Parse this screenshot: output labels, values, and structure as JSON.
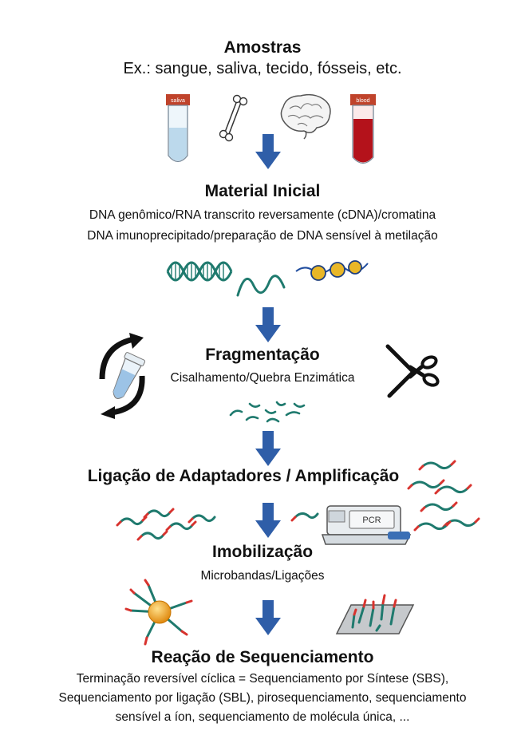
{
  "stages": {
    "samples": {
      "title": "Amostras",
      "subtitle": "Ex.: sangue, saliva, tecido, fósseis, etc.",
      "tube1_label": "saliva",
      "tube2_label": "blood"
    },
    "starting_material": {
      "title": "Material Inicial",
      "line1": "DNA genômico/RNA transcrito reversamente (cDNA)/cromatina",
      "line2": "DNA imunoprecipitado/preparação de DNA sensível à metilação"
    },
    "fragmentation": {
      "title": "Fragmentação",
      "subtitle": "Cisalhamento/Quebra Enzimática"
    },
    "ligation": {
      "title": "Ligação de Adaptadores / Amplificação",
      "pcr_label": "PCR"
    },
    "immobilization": {
      "title": "Imobilização",
      "subtitle": "Microbandas/Ligações"
    },
    "sequencing": {
      "title": "Reação de Sequenciamento",
      "line1": "Terminação reversível cíclica = Sequenciamento por Síntese (SBS),",
      "line2": "Sequenciamento por ligação (SBL), pirosequenciamento, sequenciamento",
      "line3": "sensível a íon, sequenciamento de molécula única, ..."
    }
  },
  "colors": {
    "arrow": "#2f5ea8",
    "dna": "#1f7a6e",
    "adapter": "#d8332e",
    "blood": "#b4121b",
    "saliva": "#bcd9ec",
    "bead": "#f2a51c"
  },
  "icons": [
    "saliva-tube-icon",
    "bone-icon",
    "brain-icon",
    "blood-tube-icon",
    "dna-helix-icon",
    "nucleosome-icon",
    "eppendorf-tube-icon",
    "scissors-icon",
    "pcr-machine-icon",
    "bead-icon",
    "flow-cell-icon"
  ]
}
